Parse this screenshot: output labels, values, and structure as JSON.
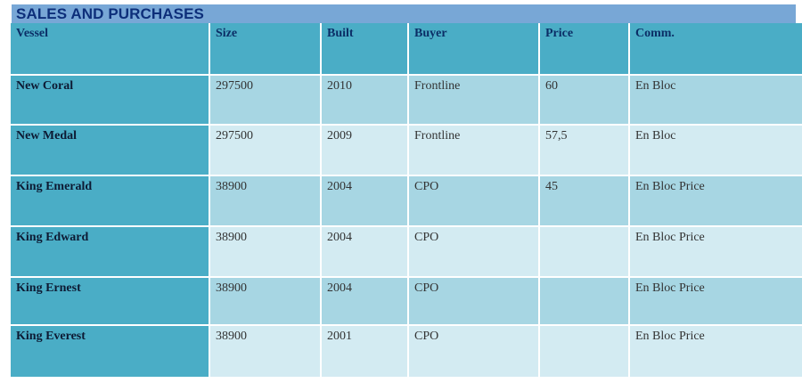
{
  "title": "SALES AND PURCHASES",
  "colors": {
    "title_bg": "#78a7d6",
    "title_text": "#0d2f7a",
    "header_bg": "#4aadc6",
    "row_odd_bg": "#a7d6e3",
    "row_even_bg": "#d3ebf2"
  },
  "table": {
    "headers": [
      "Vessel",
      "Size",
      "Built",
      "Buyer",
      "Price",
      "Comm."
    ],
    "rows": [
      [
        "New Coral",
        "297500",
        "2010",
        "Frontline",
        "60",
        "En Bloc"
      ],
      [
        "New Medal",
        "297500",
        "2009",
        "Frontline",
        "57,5",
        "En Bloc"
      ],
      [
        "King Emerald",
        "38900",
        "2004",
        "CPO",
        "45",
        "En Bloc Price"
      ],
      [
        "King Edward",
        "38900",
        "2004",
        "CPO",
        "",
        "En Bloc Price"
      ],
      [
        "King Ernest",
        "38900",
        "2004",
        "CPO",
        "",
        "En Bloc Price"
      ],
      [
        "King Everest",
        "38900",
        "2001",
        "CPO",
        "",
        "En Bloc Price"
      ]
    ]
  }
}
